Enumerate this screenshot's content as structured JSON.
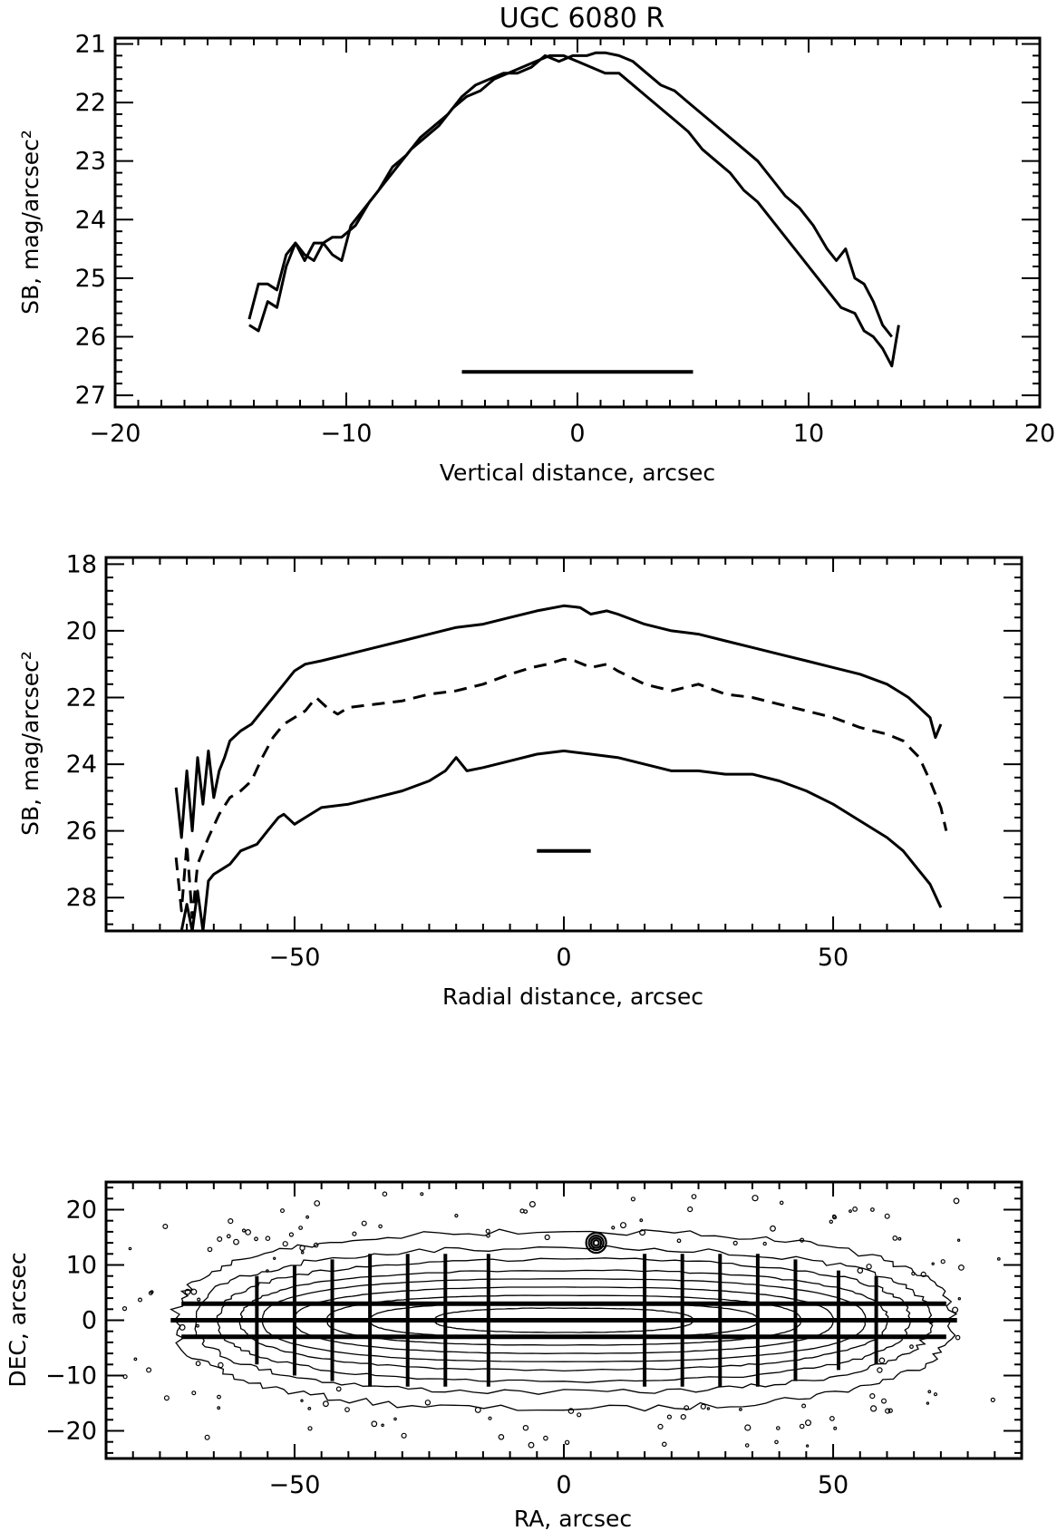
{
  "chart_data": [
    {
      "type": "line",
      "title": "UGC 6080 R",
      "xlabel": "Vertical distance, arcsec",
      "ylabel": "SB, mag/arcsec²",
      "xlim": [
        -20,
        20
      ],
      "ylim": [
        27.2,
        20.9
      ],
      "y_inverted": true,
      "xticks": [
        -20,
        -10,
        0,
        10,
        20
      ],
      "yticks": [
        21,
        22,
        23,
        24,
        25,
        26,
        27
      ],
      "series": [
        {
          "style": "solid",
          "x": [
            -14.2,
            -13.8,
            -13.4,
            -13.0,
            -12.6,
            -12.2,
            -11.8,
            -11.4,
            -11.0,
            -10.6,
            -10.2,
            -9.8,
            -9.2,
            -8.6,
            -8.0,
            -7.4,
            -6.8,
            -6.2,
            -5.6,
            -5.0,
            -4.4,
            -3.8,
            -3.2,
            -2.6,
            -2.0,
            -1.4,
            -0.8,
            -0.2,
            0.4,
            0.8,
            1.2,
            1.8,
            2.4,
            3.0,
            3.6,
            4.2,
            4.8,
            5.4,
            6.0,
            6.6,
            7.2,
            7.8,
            8.4,
            9.0,
            9.6,
            10.2,
            10.8,
            11.2,
            11.6,
            12.0,
            12.4,
            12.8,
            13.2,
            13.6
          ],
          "y": [
            25.8,
            25.9,
            25.4,
            25.5,
            24.8,
            24.4,
            24.6,
            24.7,
            24.4,
            24.6,
            24.7,
            24.1,
            23.8,
            23.5,
            23.1,
            22.9,
            22.6,
            22.4,
            22.2,
            21.9,
            21.7,
            21.6,
            21.5,
            21.5,
            21.4,
            21.2,
            21.3,
            21.2,
            21.2,
            21.15,
            21.15,
            21.2,
            21.3,
            21.5,
            21.7,
            21.8,
            22.0,
            22.2,
            22.4,
            22.6,
            22.8,
            23.0,
            23.3,
            23.6,
            23.8,
            24.1,
            24.5,
            24.7,
            24.5,
            25.0,
            25.1,
            25.4,
            25.8,
            26.0
          ]
        },
        {
          "style": "solid",
          "x": [
            -14.2,
            -13.8,
            -13.4,
            -13.0,
            -12.6,
            -12.2,
            -11.8,
            -11.4,
            -11.0,
            -10.6,
            -10.2,
            -9.6,
            -9.0,
            -8.4,
            -7.8,
            -7.2,
            -6.6,
            -6.0,
            -5.4,
            -4.8,
            -4.2,
            -3.6,
            -3.0,
            -2.4,
            -1.8,
            -1.2,
            -0.6,
            0.0,
            0.6,
            1.2,
            1.8,
            2.4,
            3.0,
            3.6,
            4.2,
            4.8,
            5.4,
            6.0,
            6.6,
            7.2,
            7.8,
            8.4,
            9.0,
            9.6,
            10.2,
            10.8,
            11.4,
            12.0,
            12.4,
            12.8,
            13.2,
            13.6,
            13.9
          ],
          "y": [
            25.7,
            25.1,
            25.1,
            25.2,
            24.6,
            24.4,
            24.7,
            24.4,
            24.4,
            24.3,
            24.3,
            24.1,
            23.7,
            23.4,
            23.1,
            22.8,
            22.6,
            22.4,
            22.1,
            21.9,
            21.8,
            21.6,
            21.5,
            21.4,
            21.3,
            21.2,
            21.2,
            21.3,
            21.4,
            21.5,
            21.5,
            21.7,
            21.9,
            22.1,
            22.3,
            22.5,
            22.8,
            23.0,
            23.2,
            23.5,
            23.7,
            24.0,
            24.3,
            24.6,
            24.9,
            25.2,
            25.5,
            25.6,
            25.9,
            26.0,
            26.2,
            26.5,
            25.8
          ]
        }
      ],
      "annotations": [
        {
          "type": "scale-bar",
          "x": [
            -5,
            5
          ],
          "y": 26.6
        }
      ]
    },
    {
      "type": "line",
      "title": "",
      "xlabel": "Radial distance, arcsec",
      "ylabel": "SB, mag/arcsec²",
      "xlim": [
        -85,
        85
      ],
      "ylim": [
        29,
        17.8
      ],
      "y_inverted": true,
      "xticks": [
        -50,
        0,
        50
      ],
      "yticks": [
        18,
        20,
        22,
        24,
        26,
        28
      ],
      "series": [
        {
          "style": "solid",
          "x": [
            -72,
            -71,
            -70,
            -69,
            -68,
            -67,
            -66,
            -65,
            -64,
            -63,
            -62,
            -60,
            -58,
            -56,
            -54,
            -52,
            -50,
            -48,
            -45,
            -40,
            -35,
            -30,
            -25,
            -20,
            -15,
            -10,
            -5,
            0,
            3,
            5,
            8,
            10,
            15,
            20,
            25,
            30,
            35,
            40,
            45,
            50,
            55,
            60,
            62,
            64,
            66,
            68,
            69,
            70
          ],
          "y": [
            24.7,
            26.2,
            24.2,
            26.0,
            23.8,
            25.2,
            23.6,
            25.0,
            24.2,
            23.8,
            23.3,
            23.0,
            22.8,
            22.4,
            22.0,
            21.6,
            21.2,
            21.0,
            20.9,
            20.7,
            20.5,
            20.3,
            20.1,
            19.9,
            19.8,
            19.6,
            19.4,
            19.25,
            19.3,
            19.5,
            19.4,
            19.5,
            19.8,
            20.0,
            20.1,
            20.3,
            20.5,
            20.7,
            20.9,
            21.1,
            21.3,
            21.6,
            21.8,
            22.0,
            22.3,
            22.6,
            23.2,
            22.8
          ]
        },
        {
          "style": "dashed",
          "x": [
            -72,
            -71,
            -70,
            -69,
            -68,
            -66,
            -64,
            -62,
            -60,
            -58,
            -56,
            -54,
            -52,
            -50,
            -48,
            -46,
            -44,
            -42,
            -40,
            -35,
            -30,
            -25,
            -20,
            -15,
            -10,
            -6,
            -3,
            0,
            2,
            5,
            8,
            10,
            15,
            20,
            25,
            30,
            35,
            40,
            45,
            50,
            55,
            60,
            63,
            66,
            68,
            70,
            71
          ],
          "y": [
            26.8,
            28.4,
            26.4,
            28.6,
            27.0,
            26.2,
            25.5,
            25.0,
            24.8,
            24.5,
            23.8,
            23.2,
            22.8,
            22.6,
            22.4,
            22.0,
            22.3,
            22.5,
            22.3,
            22.2,
            22.1,
            21.9,
            21.8,
            21.6,
            21.3,
            21.1,
            21.0,
            20.85,
            20.9,
            21.1,
            21.0,
            21.2,
            21.6,
            21.8,
            21.6,
            21.9,
            22.0,
            22.2,
            22.4,
            22.6,
            22.9,
            23.1,
            23.3,
            23.8,
            24.5,
            25.3,
            26.0
          ]
        },
        {
          "style": "solid",
          "x": [
            -71,
            -70,
            -69,
            -68,
            -67,
            -66,
            -65,
            -64,
            -62,
            -60,
            -57,
            -55,
            -53,
            -52,
            -50,
            -48,
            -45,
            -40,
            -35,
            -30,
            -25,
            -22,
            -20,
            -18,
            -15,
            -10,
            -5,
            0,
            5,
            10,
            15,
            20,
            25,
            30,
            35,
            40,
            45,
            50,
            55,
            60,
            63,
            66,
            68,
            70
          ],
          "y": [
            29.0,
            28.2,
            29.0,
            27.8,
            29.0,
            27.5,
            27.3,
            27.2,
            27.0,
            26.6,
            26.4,
            26.0,
            25.6,
            25.5,
            25.8,
            25.6,
            25.3,
            25.2,
            25.0,
            24.8,
            24.5,
            24.2,
            23.8,
            24.2,
            24.1,
            23.9,
            23.7,
            23.6,
            23.7,
            23.8,
            24.0,
            24.2,
            24.2,
            24.3,
            24.3,
            24.5,
            24.8,
            25.2,
            25.7,
            26.2,
            26.6,
            27.2,
            27.6,
            28.3
          ]
        }
      ],
      "annotations": [
        {
          "type": "scale-bar",
          "x": [
            -5,
            5
          ],
          "y": 26.6
        }
      ]
    },
    {
      "type": "contour",
      "title": "",
      "xlabel": "RA, arcsec",
      "ylabel": "DEC, arcsec",
      "xlim": [
        -85,
        85
      ],
      "ylim": [
        -25,
        25
      ],
      "xticks": [
        -50,
        0,
        50
      ],
      "yticks": [
        -20,
        -10,
        0,
        10,
        20
      ],
      "contour_semi_axes": [
        [
          72,
          16
        ],
        [
          68,
          13
        ],
        [
          64,
          11
        ],
        [
          60,
          9
        ],
        [
          56,
          7.5
        ],
        [
          50,
          6
        ],
        [
          44,
          4.5
        ],
        [
          36,
          3.2
        ],
        [
          24,
          2.2
        ]
      ],
      "star": {
        "x": 6,
        "y": 14
      },
      "horizontal_cuts": [
        {
          "y": 3,
          "x": [
            -71,
            71
          ]
        },
        {
          "y": 0,
          "x": [
            -73,
            73
          ]
        },
        {
          "y": -3,
          "x": [
            -71,
            71
          ]
        }
      ],
      "vertical_cuts": [
        {
          "x": -57,
          "half_height": 8
        },
        {
          "x": -50,
          "half_height": 10
        },
        {
          "x": -43,
          "half_height": 11
        },
        {
          "x": -36,
          "half_height": 12
        },
        {
          "x": -29,
          "half_height": 12
        },
        {
          "x": -22,
          "half_height": 12
        },
        {
          "x": -14,
          "half_height": 12
        },
        {
          "x": 15,
          "half_height": 12
        },
        {
          "x": 22,
          "half_height": 12
        },
        {
          "x": 29,
          "half_height": 12
        },
        {
          "x": 36,
          "half_height": 12
        },
        {
          "x": 43,
          "half_height": 11
        },
        {
          "x": 51,
          "half_height": 9
        },
        {
          "x": 58,
          "half_height": 8
        }
      ]
    }
  ]
}
